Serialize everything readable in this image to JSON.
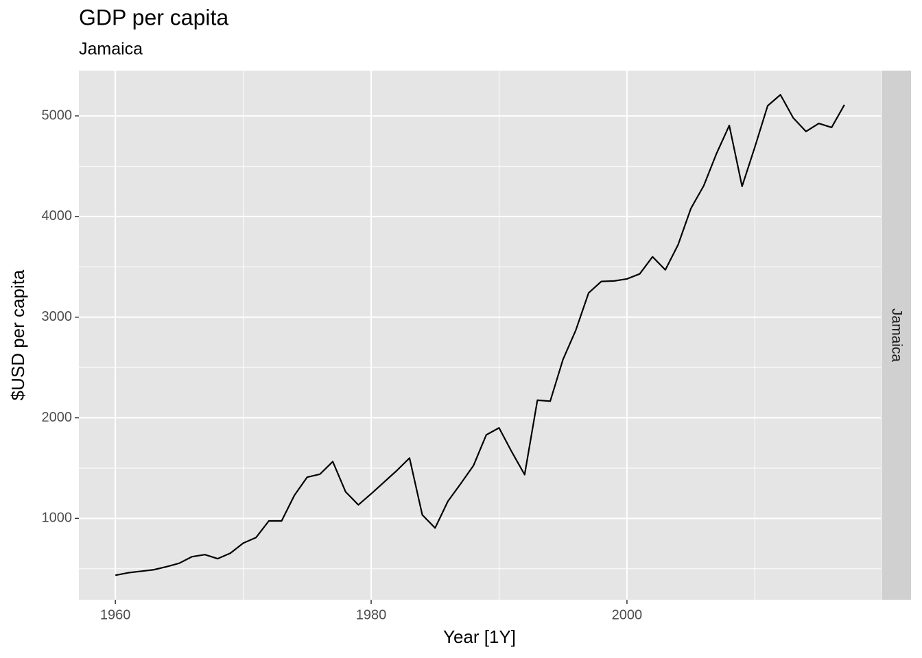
{
  "chart_data": {
    "type": "line",
    "title": "GDP per capita",
    "subtitle": "Jamaica",
    "facet_label": "Jamaica",
    "x_label": "Year [1Y]",
    "y_label": "$USD per capita",
    "color": "#000000",
    "grid": true,
    "x": [
      1960,
      1961,
      1962,
      1963,
      1964,
      1965,
      1966,
      1967,
      1968,
      1969,
      1970,
      1971,
      1972,
      1973,
      1974,
      1975,
      1976,
      1977,
      1978,
      1979,
      1980,
      1981,
      1982,
      1983,
      1984,
      1985,
      1986,
      1987,
      1988,
      1989,
      1990,
      1991,
      1992,
      1993,
      1994,
      1995,
      1996,
      1997,
      1998,
      1999,
      2000,
      2001,
      2002,
      2003,
      2004,
      2005,
      2006,
      2007,
      2008,
      2009,
      2010,
      2011,
      2012,
      2013,
      2014,
      2015,
      2016,
      2017
    ],
    "values": [
      435,
      460,
      475,
      490,
      520,
      555,
      620,
      640,
      600,
      655,
      755,
      810,
      975,
      975,
      1230,
      1410,
      1440,
      1565,
      1265,
      1135,
      1245,
      1360,
      1475,
      1600,
      1035,
      905,
      1170,
      1345,
      1525,
      1830,
      1900,
      1660,
      1435,
      2175,
      2165,
      2580,
      2870,
      3240,
      3355,
      3360,
      3380,
      3430,
      3600,
      3470,
      3720,
      4080,
      4305,
      4625,
      4905,
      4300,
      4690,
      5100,
      5210,
      4980,
      4845,
      4925,
      4885,
      5110
    ],
    "xlim": [
      1957.15,
      2019.85
    ],
    "xticks": [
      1960,
      1980,
      2000
    ],
    "ylim": [
      192,
      5450
    ],
    "yticks": [
      1000,
      2000,
      3000,
      4000,
      5000
    ]
  }
}
